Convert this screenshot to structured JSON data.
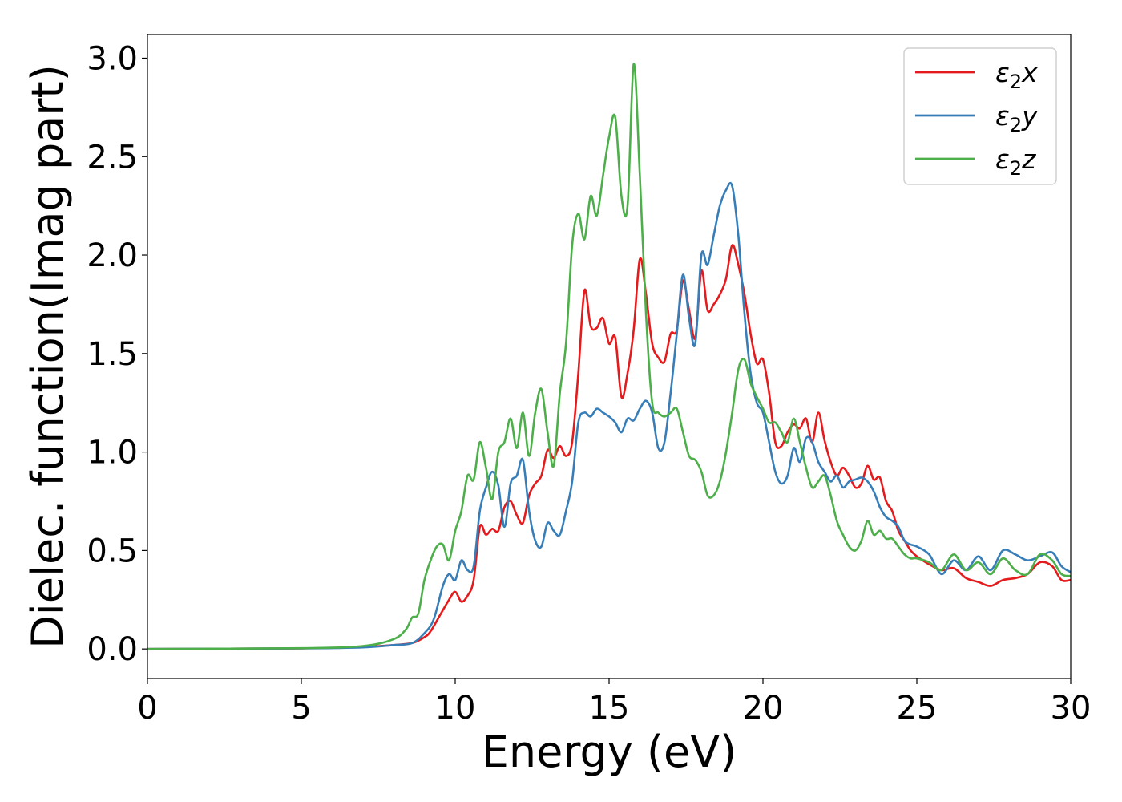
{
  "chart_data": {
    "type": "line",
    "xlabel": "Energy (eV)",
    "ylabel": "Dielec. function(Imag part)",
    "xlim": [
      0,
      30
    ],
    "ylim": [
      -0.15,
      3.12
    ],
    "xticks": [
      0,
      5,
      10,
      15,
      20,
      25,
      30
    ],
    "xtick_labels": [
      "0",
      "5",
      "10",
      "15",
      "20",
      "25",
      "30"
    ],
    "yticks": [
      0.0,
      0.5,
      1.0,
      1.5,
      2.0,
      2.5,
      3.0
    ],
    "ytick_labels": [
      "0.0",
      "0.5",
      "1.0",
      "1.5",
      "2.0",
      "2.5",
      "3.0"
    ],
    "grid": false,
    "legend_position": "top-right",
    "series": [
      {
        "name": "ε₂x",
        "legend_main": "ε",
        "legend_sub": "2",
        "legend_suffix": "x",
        "color": "#e41a1c",
        "points": [
          [
            0,
            0
          ],
          [
            5,
            0.003
          ],
          [
            7,
            0.01
          ],
          [
            8,
            0.02
          ],
          [
            8.6,
            0.03
          ],
          [
            9.0,
            0.06
          ],
          [
            9.2,
            0.09
          ],
          [
            9.5,
            0.17
          ],
          [
            9.8,
            0.25
          ],
          [
            10.0,
            0.29
          ],
          [
            10.2,
            0.24
          ],
          [
            10.4,
            0.27
          ],
          [
            10.6,
            0.35
          ],
          [
            10.8,
            0.62
          ],
          [
            11.0,
            0.58
          ],
          [
            11.2,
            0.61
          ],
          [
            11.4,
            0.6
          ],
          [
            11.6,
            0.72
          ],
          [
            11.8,
            0.75
          ],
          [
            12.0,
            0.68
          ],
          [
            12.2,
            0.64
          ],
          [
            12.4,
            0.78
          ],
          [
            12.6,
            0.84
          ],
          [
            12.8,
            0.88
          ],
          [
            13.0,
            1.01
          ],
          [
            13.2,
            0.97
          ],
          [
            13.4,
            1.03
          ],
          [
            13.6,
            0.98
          ],
          [
            13.8,
            1.05
          ],
          [
            14.0,
            1.4
          ],
          [
            14.2,
            1.82
          ],
          [
            14.4,
            1.64
          ],
          [
            14.6,
            1.63
          ],
          [
            14.8,
            1.68
          ],
          [
            15.0,
            1.55
          ],
          [
            15.2,
            1.58
          ],
          [
            15.4,
            1.28
          ],
          [
            15.6,
            1.4
          ],
          [
            15.8,
            1.62
          ],
          [
            16.0,
            1.98
          ],
          [
            16.2,
            1.8
          ],
          [
            16.4,
            1.55
          ],
          [
            16.6,
            1.48
          ],
          [
            16.8,
            1.46
          ],
          [
            17.0,
            1.6
          ],
          [
            17.2,
            1.62
          ],
          [
            17.4,
            1.87
          ],
          [
            17.6,
            1.72
          ],
          [
            17.8,
            1.58
          ],
          [
            18.0,
            1.92
          ],
          [
            18.2,
            1.72
          ],
          [
            18.4,
            1.75
          ],
          [
            18.6,
            1.8
          ],
          [
            18.8,
            1.88
          ],
          [
            19.0,
            2.05
          ],
          [
            19.2,
            1.95
          ],
          [
            19.4,
            1.8
          ],
          [
            19.6,
            1.6
          ],
          [
            19.8,
            1.45
          ],
          [
            20.0,
            1.47
          ],
          [
            20.2,
            1.3
          ],
          [
            20.4,
            1.05
          ],
          [
            20.6,
            1.03
          ],
          [
            20.8,
            1.1
          ],
          [
            21.0,
            1.14
          ],
          [
            21.2,
            1.12
          ],
          [
            21.4,
            1.17
          ],
          [
            21.6,
            1.05
          ],
          [
            21.8,
            1.2
          ],
          [
            22.0,
            1.06
          ],
          [
            22.2,
            0.95
          ],
          [
            22.4,
            0.88
          ],
          [
            22.6,
            0.92
          ],
          [
            22.8,
            0.88
          ],
          [
            23.0,
            0.82
          ],
          [
            23.2,
            0.84
          ],
          [
            23.4,
            0.93
          ],
          [
            23.6,
            0.86
          ],
          [
            23.8,
            0.87
          ],
          [
            24.0,
            0.75
          ],
          [
            24.2,
            0.7
          ],
          [
            24.4,
            0.6
          ],
          [
            24.6,
            0.55
          ],
          [
            24.8,
            0.5
          ],
          [
            25.0,
            0.47
          ],
          [
            25.4,
            0.43
          ],
          [
            25.8,
            0.4
          ],
          [
            26.2,
            0.41
          ],
          [
            26.6,
            0.36
          ],
          [
            27.0,
            0.34
          ],
          [
            27.4,
            0.32
          ],
          [
            27.8,
            0.35
          ],
          [
            28.2,
            0.36
          ],
          [
            28.6,
            0.38
          ],
          [
            29.0,
            0.44
          ],
          [
            29.4,
            0.42
          ],
          [
            29.7,
            0.35
          ],
          [
            30.0,
            0.35
          ]
        ]
      },
      {
        "name": "ε₂y",
        "legend_main": "ε",
        "legend_sub": "2",
        "legend_suffix": "y",
        "color": "#377eb8",
        "points": [
          [
            0,
            0
          ],
          [
            5,
            0.003
          ],
          [
            7,
            0.008
          ],
          [
            8,
            0.02
          ],
          [
            8.6,
            0.03
          ],
          [
            9.0,
            0.08
          ],
          [
            9.3,
            0.15
          ],
          [
            9.6,
            0.32
          ],
          [
            9.8,
            0.38
          ],
          [
            10.0,
            0.35
          ],
          [
            10.2,
            0.45
          ],
          [
            10.4,
            0.4
          ],
          [
            10.6,
            0.42
          ],
          [
            10.8,
            0.7
          ],
          [
            11.0,
            0.82
          ],
          [
            11.2,
            0.9
          ],
          [
            11.4,
            0.83
          ],
          [
            11.6,
            0.62
          ],
          [
            11.8,
            0.84
          ],
          [
            12.0,
            0.88
          ],
          [
            12.2,
            0.96
          ],
          [
            12.4,
            0.7
          ],
          [
            12.6,
            0.55
          ],
          [
            12.8,
            0.52
          ],
          [
            13.0,
            0.64
          ],
          [
            13.2,
            0.6
          ],
          [
            13.4,
            0.58
          ],
          [
            13.6,
            0.7
          ],
          [
            13.8,
            0.85
          ],
          [
            14.0,
            1.15
          ],
          [
            14.2,
            1.2
          ],
          [
            14.4,
            1.18
          ],
          [
            14.6,
            1.22
          ],
          [
            14.8,
            1.2
          ],
          [
            15.0,
            1.18
          ],
          [
            15.2,
            1.15
          ],
          [
            15.4,
            1.1
          ],
          [
            15.6,
            1.17
          ],
          [
            15.8,
            1.16
          ],
          [
            16.0,
            1.22
          ],
          [
            16.2,
            1.26
          ],
          [
            16.4,
            1.2
          ],
          [
            16.6,
            1.02
          ],
          [
            16.8,
            1.05
          ],
          [
            17.0,
            1.3
          ],
          [
            17.2,
            1.6
          ],
          [
            17.4,
            1.9
          ],
          [
            17.6,
            1.68
          ],
          [
            17.8,
            1.55
          ],
          [
            18.0,
            2.0
          ],
          [
            18.2,
            1.95
          ],
          [
            18.4,
            2.1
          ],
          [
            18.6,
            2.25
          ],
          [
            18.8,
            2.33
          ],
          [
            19.0,
            2.35
          ],
          [
            19.2,
            2.1
          ],
          [
            19.4,
            1.7
          ],
          [
            19.6,
            1.4
          ],
          [
            19.8,
            1.25
          ],
          [
            20.0,
            1.2
          ],
          [
            20.2,
            1.05
          ],
          [
            20.4,
            0.9
          ],
          [
            20.6,
            0.84
          ],
          [
            20.8,
            0.88
          ],
          [
            21.0,
            1.02
          ],
          [
            21.2,
            0.95
          ],
          [
            21.4,
            1.07
          ],
          [
            21.6,
            1.05
          ],
          [
            21.8,
            0.95
          ],
          [
            22.0,
            0.9
          ],
          [
            22.2,
            0.85
          ],
          [
            22.4,
            0.88
          ],
          [
            22.6,
            0.82
          ],
          [
            22.8,
            0.85
          ],
          [
            23.0,
            0.86
          ],
          [
            23.2,
            0.87
          ],
          [
            23.4,
            0.85
          ],
          [
            23.6,
            0.8
          ],
          [
            23.8,
            0.72
          ],
          [
            24.0,
            0.67
          ],
          [
            24.2,
            0.65
          ],
          [
            24.4,
            0.62
          ],
          [
            24.6,
            0.55
          ],
          [
            24.8,
            0.53
          ],
          [
            25.0,
            0.52
          ],
          [
            25.4,
            0.48
          ],
          [
            25.8,
            0.38
          ],
          [
            26.2,
            0.45
          ],
          [
            26.6,
            0.4
          ],
          [
            27.0,
            0.47
          ],
          [
            27.4,
            0.4
          ],
          [
            27.8,
            0.5
          ],
          [
            28.2,
            0.48
          ],
          [
            28.6,
            0.45
          ],
          [
            29.0,
            0.47
          ],
          [
            29.4,
            0.49
          ],
          [
            29.7,
            0.42
          ],
          [
            30.0,
            0.39
          ]
        ]
      },
      {
        "name": "ε₂z",
        "legend_main": "ε",
        "legend_sub": "2",
        "legend_suffix": "z",
        "color": "#4daf4a",
        "points": [
          [
            0,
            0
          ],
          [
            5,
            0.004
          ],
          [
            7,
            0.015
          ],
          [
            8,
            0.05
          ],
          [
            8.4,
            0.1
          ],
          [
            8.6,
            0.16
          ],
          [
            8.8,
            0.18
          ],
          [
            9.0,
            0.35
          ],
          [
            9.2,
            0.45
          ],
          [
            9.4,
            0.52
          ],
          [
            9.6,
            0.53
          ],
          [
            9.8,
            0.45
          ],
          [
            10.0,
            0.6
          ],
          [
            10.2,
            0.7
          ],
          [
            10.4,
            0.88
          ],
          [
            10.6,
            0.86
          ],
          [
            10.8,
            1.05
          ],
          [
            11.0,
            0.92
          ],
          [
            11.2,
            0.76
          ],
          [
            11.4,
            1.0
          ],
          [
            11.6,
            1.05
          ],
          [
            11.8,
            1.17
          ],
          [
            12.0,
            1.02
          ],
          [
            12.2,
            1.2
          ],
          [
            12.4,
            0.98
          ],
          [
            12.6,
            1.2
          ],
          [
            12.8,
            1.32
          ],
          [
            13.0,
            1.1
          ],
          [
            13.2,
            0.93
          ],
          [
            13.4,
            1.3
          ],
          [
            13.6,
            1.55
          ],
          [
            13.8,
            2.05
          ],
          [
            14.0,
            2.21
          ],
          [
            14.2,
            2.08
          ],
          [
            14.4,
            2.3
          ],
          [
            14.6,
            2.2
          ],
          [
            14.8,
            2.4
          ],
          [
            15.0,
            2.6
          ],
          [
            15.2,
            2.7
          ],
          [
            15.4,
            2.3
          ],
          [
            15.6,
            2.25
          ],
          [
            15.8,
            2.97
          ],
          [
            16.0,
            2.4
          ],
          [
            16.2,
            1.7
          ],
          [
            16.4,
            1.25
          ],
          [
            16.6,
            1.2
          ],
          [
            16.8,
            1.18
          ],
          [
            17.0,
            1.2
          ],
          [
            17.2,
            1.22
          ],
          [
            17.4,
            1.1
          ],
          [
            17.6,
            0.98
          ],
          [
            17.8,
            0.96
          ],
          [
            18.0,
            0.9
          ],
          [
            18.2,
            0.78
          ],
          [
            18.4,
            0.78
          ],
          [
            18.6,
            0.85
          ],
          [
            18.8,
            1.0
          ],
          [
            19.0,
            1.2
          ],
          [
            19.2,
            1.42
          ],
          [
            19.4,
            1.47
          ],
          [
            19.6,
            1.35
          ],
          [
            19.8,
            1.28
          ],
          [
            20.0,
            1.22
          ],
          [
            20.2,
            1.15
          ],
          [
            20.4,
            1.15
          ],
          [
            20.6,
            1.1
          ],
          [
            20.8,
            1.05
          ],
          [
            21.0,
            1.17
          ],
          [
            21.2,
            1.05
          ],
          [
            21.4,
            0.92
          ],
          [
            21.6,
            0.82
          ],
          [
            21.8,
            0.85
          ],
          [
            22.0,
            0.88
          ],
          [
            22.2,
            0.78
          ],
          [
            22.4,
            0.65
          ],
          [
            22.6,
            0.58
          ],
          [
            22.8,
            0.52
          ],
          [
            23.0,
            0.5
          ],
          [
            23.2,
            0.55
          ],
          [
            23.4,
            0.65
          ],
          [
            23.6,
            0.58
          ],
          [
            23.8,
            0.6
          ],
          [
            24.0,
            0.56
          ],
          [
            24.2,
            0.56
          ],
          [
            24.4,
            0.52
          ],
          [
            24.6,
            0.48
          ],
          [
            24.8,
            0.46
          ],
          [
            25.0,
            0.46
          ],
          [
            25.4,
            0.44
          ],
          [
            25.8,
            0.4
          ],
          [
            26.2,
            0.48
          ],
          [
            26.6,
            0.4
          ],
          [
            27.0,
            0.44
          ],
          [
            27.4,
            0.38
          ],
          [
            27.8,
            0.46
          ],
          [
            28.2,
            0.4
          ],
          [
            28.6,
            0.38
          ],
          [
            29.0,
            0.48
          ],
          [
            29.4,
            0.45
          ],
          [
            29.7,
            0.38
          ],
          [
            30.0,
            0.37
          ]
        ]
      }
    ]
  }
}
